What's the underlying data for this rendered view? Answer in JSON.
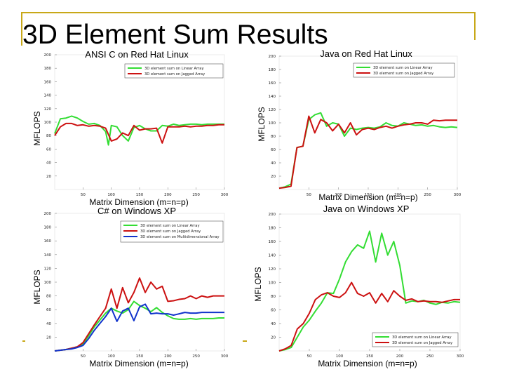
{
  "slide_title": "3D Element Sum Results",
  "colors": {
    "accent": "#c8a818",
    "linear": "#33dd33",
    "jagged": "#cc1111",
    "multidimensional": "#1133cc"
  },
  "chart_data": [
    {
      "type": "line",
      "title": "ANSI C on Red Hat Linux",
      "xlabel": "Matrix Dimension (m=n=p)",
      "ylabel": "MFLOPS",
      "xlim": [
        0,
        300
      ],
      "ylim": [
        0,
        200
      ],
      "xticks": [
        "50",
        "100",
        "150",
        "200",
        "250",
        "300"
      ],
      "yticks": [
        "20",
        "40",
        "60",
        "80",
        "100",
        "120",
        "140",
        "160",
        "180",
        "200"
      ],
      "legend_position": "top-right",
      "series": [
        {
          "name": "3D element sum on Linear Array",
          "color": "#33dd33",
          "x": [
            0,
            10,
            20,
            30,
            40,
            50,
            60,
            70,
            80,
            90,
            95,
            100,
            110,
            120,
            130,
            140,
            150,
            160,
            170,
            180,
            190,
            200,
            210,
            220,
            230,
            240,
            250,
            260,
            270,
            280,
            290,
            300
          ],
          "y": [
            83,
            105,
            106,
            109,
            106,
            101,
            97,
            98,
            95,
            86,
            66,
            95,
            93,
            80,
            72,
            92,
            95,
            90,
            87,
            87,
            95,
            94,
            97,
            95,
            96,
            97,
            97,
            96,
            97,
            97,
            97,
            97
          ]
        },
        {
          "name": "3D element sum on Jagged Array",
          "color": "#cc1111",
          "x": [
            0,
            10,
            20,
            30,
            40,
            50,
            60,
            70,
            80,
            90,
            100,
            110,
            120,
            130,
            140,
            150,
            160,
            170,
            180,
            190,
            200,
            210,
            220,
            230,
            240,
            250,
            260,
            270,
            280,
            290,
            300
          ],
          "y": [
            80,
            93,
            98,
            98,
            95,
            96,
            94,
            95,
            94,
            91,
            72,
            75,
            84,
            80,
            95,
            88,
            90,
            90,
            91,
            69,
            93,
            93,
            93,
            94,
            93,
            94,
            94,
            95,
            95,
            96,
            96
          ]
        }
      ]
    },
    {
      "type": "line",
      "title": "Java on Red Hat Linux",
      "xlabel": "Matrix Dimension (m=n=p)",
      "ylabel": "MFLOPS",
      "xlim": [
        0,
        300
      ],
      "ylim": [
        0,
        200
      ],
      "xticks": [
        "50",
        "100",
        "150",
        "200",
        "250",
        "300"
      ],
      "yticks": [
        "20",
        "40",
        "60",
        "80",
        "100",
        "120",
        "140",
        "160",
        "180",
        "200"
      ],
      "legend_position": "top-right",
      "series": [
        {
          "name": "3D element sum on Linear Array",
          "color": "#33dd33",
          "x": [
            0,
            10,
            20,
            30,
            40,
            50,
            60,
            70,
            80,
            90,
            100,
            110,
            120,
            130,
            140,
            150,
            160,
            170,
            180,
            190,
            200,
            210,
            220,
            230,
            240,
            250,
            260,
            270,
            280,
            290,
            300
          ],
          "y": [
            2,
            4,
            8,
            63,
            65,
            105,
            112,
            115,
            95,
            100,
            98,
            80,
            92,
            90,
            92,
            93,
            92,
            94,
            100,
            96,
            95,
            100,
            98,
            96,
            97,
            95,
            96,
            94,
            93,
            94,
            93
          ]
        },
        {
          "name": "3D element sum on Jagged Array",
          "color": "#cc1111",
          "x": [
            0,
            10,
            20,
            30,
            40,
            50,
            60,
            70,
            80,
            90,
            100,
            110,
            120,
            130,
            140,
            150,
            160,
            170,
            180,
            190,
            200,
            210,
            220,
            230,
            240,
            250,
            260,
            270,
            280,
            290,
            300
          ],
          "y": [
            2,
            3,
            5,
            63,
            65,
            110,
            85,
            105,
            100,
            88,
            98,
            85,
            100,
            82,
            90,
            92,
            90,
            93,
            95,
            92,
            95,
            97,
            98,
            100,
            100,
            98,
            104,
            103,
            104,
            104,
            104
          ]
        }
      ]
    },
    {
      "type": "line",
      "title": "C# on Windows XP",
      "xlabel": "Matrix Dimension (m=n=p)",
      "ylabel": "MFLOPS",
      "xlim": [
        0,
        300
      ],
      "ylim": [
        0,
        200
      ],
      "xticks": [
        "50",
        "100",
        "150",
        "200",
        "250",
        "300"
      ],
      "yticks": [
        "20",
        "40",
        "60",
        "80",
        "100",
        "120",
        "140",
        "160",
        "180",
        "200"
      ],
      "legend_position": "top-right",
      "series": [
        {
          "name": "3D element sum on Linear Array",
          "color": "#33dd33",
          "x": [
            0,
            10,
            20,
            30,
            40,
            50,
            60,
            70,
            80,
            90,
            100,
            110,
            120,
            130,
            140,
            150,
            160,
            170,
            180,
            190,
            200,
            210,
            220,
            230,
            240,
            250,
            260,
            270,
            280,
            290,
            300
          ],
          "y": [
            0,
            1,
            2,
            4,
            6,
            10,
            22,
            35,
            45,
            55,
            62,
            58,
            55,
            60,
            72,
            66,
            62,
            57,
            63,
            56,
            51,
            47,
            46,
            46,
            47,
            46,
            47,
            47,
            47,
            48,
            48
          ]
        },
        {
          "name": "3D element sum on Jagged Array",
          "color": "#cc1111",
          "x": [
            0,
            10,
            20,
            30,
            40,
            50,
            60,
            70,
            80,
            90,
            100,
            110,
            120,
            130,
            140,
            150,
            160,
            170,
            180,
            190,
            200,
            210,
            220,
            230,
            240,
            250,
            260,
            270,
            280,
            290,
            300
          ],
          "y": [
            0,
            1,
            2,
            4,
            6,
            12,
            25,
            38,
            50,
            62,
            90,
            62,
            92,
            70,
            85,
            106,
            85,
            100,
            90,
            94,
            72,
            73,
            75,
            76,
            80,
            76,
            80,
            78,
            80,
            80,
            80
          ]
        },
        {
          "name": "3D element sum on Multidimensional Array",
          "color": "#1133cc",
          "x": [
            0,
            10,
            20,
            30,
            40,
            50,
            60,
            70,
            80,
            90,
            100,
            110,
            120,
            130,
            140,
            150,
            160,
            170,
            180,
            190,
            200,
            210,
            220,
            230,
            240,
            250,
            260,
            270,
            280,
            290,
            300
          ],
          "y": [
            0,
            1,
            2,
            3,
            5,
            8,
            18,
            30,
            40,
            50,
            62,
            43,
            58,
            62,
            44,
            64,
            68,
            54,
            55,
            54,
            54,
            52,
            54,
            56,
            55,
            55,
            56,
            56,
            56,
            56,
            56
          ]
        }
      ]
    },
    {
      "type": "line",
      "title": "Java on Windows XP",
      "xlabel": "Matrix Dimension (m=n=p)",
      "ylabel": "MFLOPS",
      "xlim": [
        0,
        300
      ],
      "ylim": [
        0,
        200
      ],
      "xticks": [
        "50",
        "100",
        "150",
        "200",
        "250",
        "300"
      ],
      "yticks": [
        "20",
        "40",
        "60",
        "80",
        "100",
        "120",
        "140",
        "160",
        "180",
        "200"
      ],
      "legend_position": "bottom-right",
      "series": [
        {
          "name": "3D element sum on Linear Array",
          "color": "#33dd33",
          "x": [
            0,
            10,
            20,
            30,
            40,
            50,
            60,
            70,
            80,
            90,
            100,
            110,
            120,
            130,
            140,
            150,
            160,
            170,
            180,
            190,
            200,
            210,
            220,
            230,
            240,
            250,
            260,
            270,
            280,
            290,
            300
          ],
          "y": [
            0,
            2,
            5,
            20,
            35,
            45,
            58,
            70,
            85,
            84,
            105,
            130,
            145,
            155,
            150,
            175,
            130,
            172,
            140,
            160,
            125,
            70,
            73,
            72,
            74,
            70,
            68,
            71,
            70,
            72,
            71
          ]
        },
        {
          "name": "3D element sum on Jagged Array",
          "color": "#cc1111",
          "x": [
            0,
            10,
            20,
            30,
            40,
            50,
            60,
            70,
            80,
            90,
            100,
            110,
            120,
            130,
            140,
            150,
            160,
            170,
            180,
            190,
            200,
            210,
            220,
            230,
            240,
            250,
            260,
            270,
            280,
            290,
            300
          ],
          "y": [
            0,
            3,
            8,
            32,
            40,
            55,
            75,
            82,
            85,
            80,
            78,
            85,
            100,
            84,
            80,
            85,
            70,
            84,
            72,
            88,
            80,
            74,
            76,
            72,
            73,
            72,
            72,
            71,
            73,
            75,
            75
          ]
        }
      ]
    }
  ]
}
